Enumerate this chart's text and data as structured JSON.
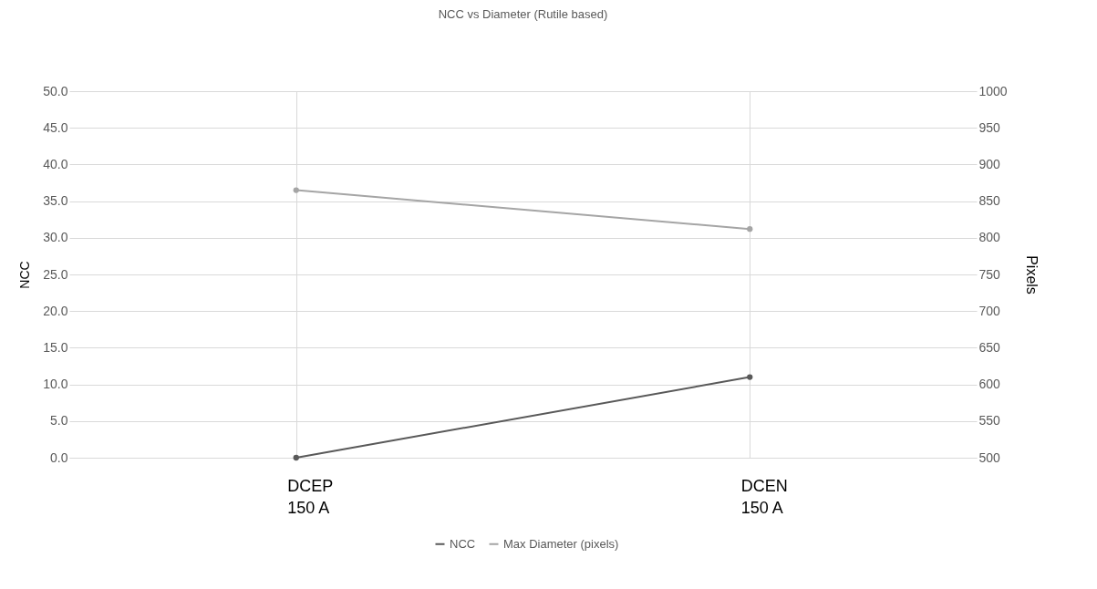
{
  "chart_data": {
    "type": "line",
    "title": "NCC vs Diameter (Rutile based)",
    "ylabel": "NCC",
    "y2label": "Pixels",
    "categories": [
      "DCEP 150 A",
      "DCEN 150 A"
    ],
    "series": [
      {
        "name": "NCC",
        "color": "#595959",
        "values": [
          0.0,
          11.0
        ]
      },
      {
        "name": "Max Diameter (pixels)",
        "color": "#a5a5a5",
        "values": [
          865,
          812
        ],
        "axis": "y2"
      }
    ],
    "ylim": [
      0,
      50
    ],
    "yticks": [
      {
        "value": 0,
        "label": "0.0"
      },
      {
        "value": 5,
        "label": "5.0"
      },
      {
        "value": 10,
        "label": "10.0"
      },
      {
        "value": 15,
        "label": "15.0"
      },
      {
        "value": 20,
        "label": "20.0"
      },
      {
        "value": 25,
        "label": "25.0"
      },
      {
        "value": 30,
        "label": "30.0"
      },
      {
        "value": 35,
        "label": "35.0"
      },
      {
        "value": 40,
        "label": "40.0"
      },
      {
        "value": 45,
        "label": "45.0"
      },
      {
        "value": 50,
        "label": "50.0"
      }
    ],
    "y2lim": [
      500,
      1000
    ],
    "y2ticks": [
      500,
      550,
      600,
      650,
      700,
      750,
      800,
      850,
      900,
      950,
      1000
    ],
    "grid": true,
    "legend": "bottom",
    "marker": "circle",
    "line_style": "solid"
  }
}
